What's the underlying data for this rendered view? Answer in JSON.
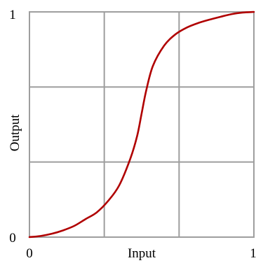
{
  "chart_data": {
    "type": "line",
    "xlabel": "Input",
    "ylabel": "Output",
    "xlim": [
      0,
      1
    ],
    "ylim": [
      0,
      1
    ],
    "x_ticks": [
      "0",
      "1"
    ],
    "y_ticks": [
      "0",
      "1"
    ],
    "grid": true,
    "grid_divisions": 3,
    "series": [
      {
        "color": "#b00000",
        "x": [
          0,
          0.05,
          0.1,
          0.15,
          0.2,
          0.25,
          0.3,
          0.35,
          0.4,
          0.45,
          0.48,
          0.5,
          0.52,
          0.55,
          0.6,
          0.65,
          0.7,
          0.75,
          0.8,
          0.85,
          0.9,
          0.95,
          1
        ],
        "y": [
          0,
          0.005,
          0.015,
          0.03,
          0.05,
          0.08,
          0.11,
          0.16,
          0.23,
          0.35,
          0.45,
          0.55,
          0.65,
          0.76,
          0.85,
          0.9,
          0.93,
          0.95,
          0.965,
          0.978,
          0.99,
          0.997,
          1
        ]
      }
    ]
  }
}
